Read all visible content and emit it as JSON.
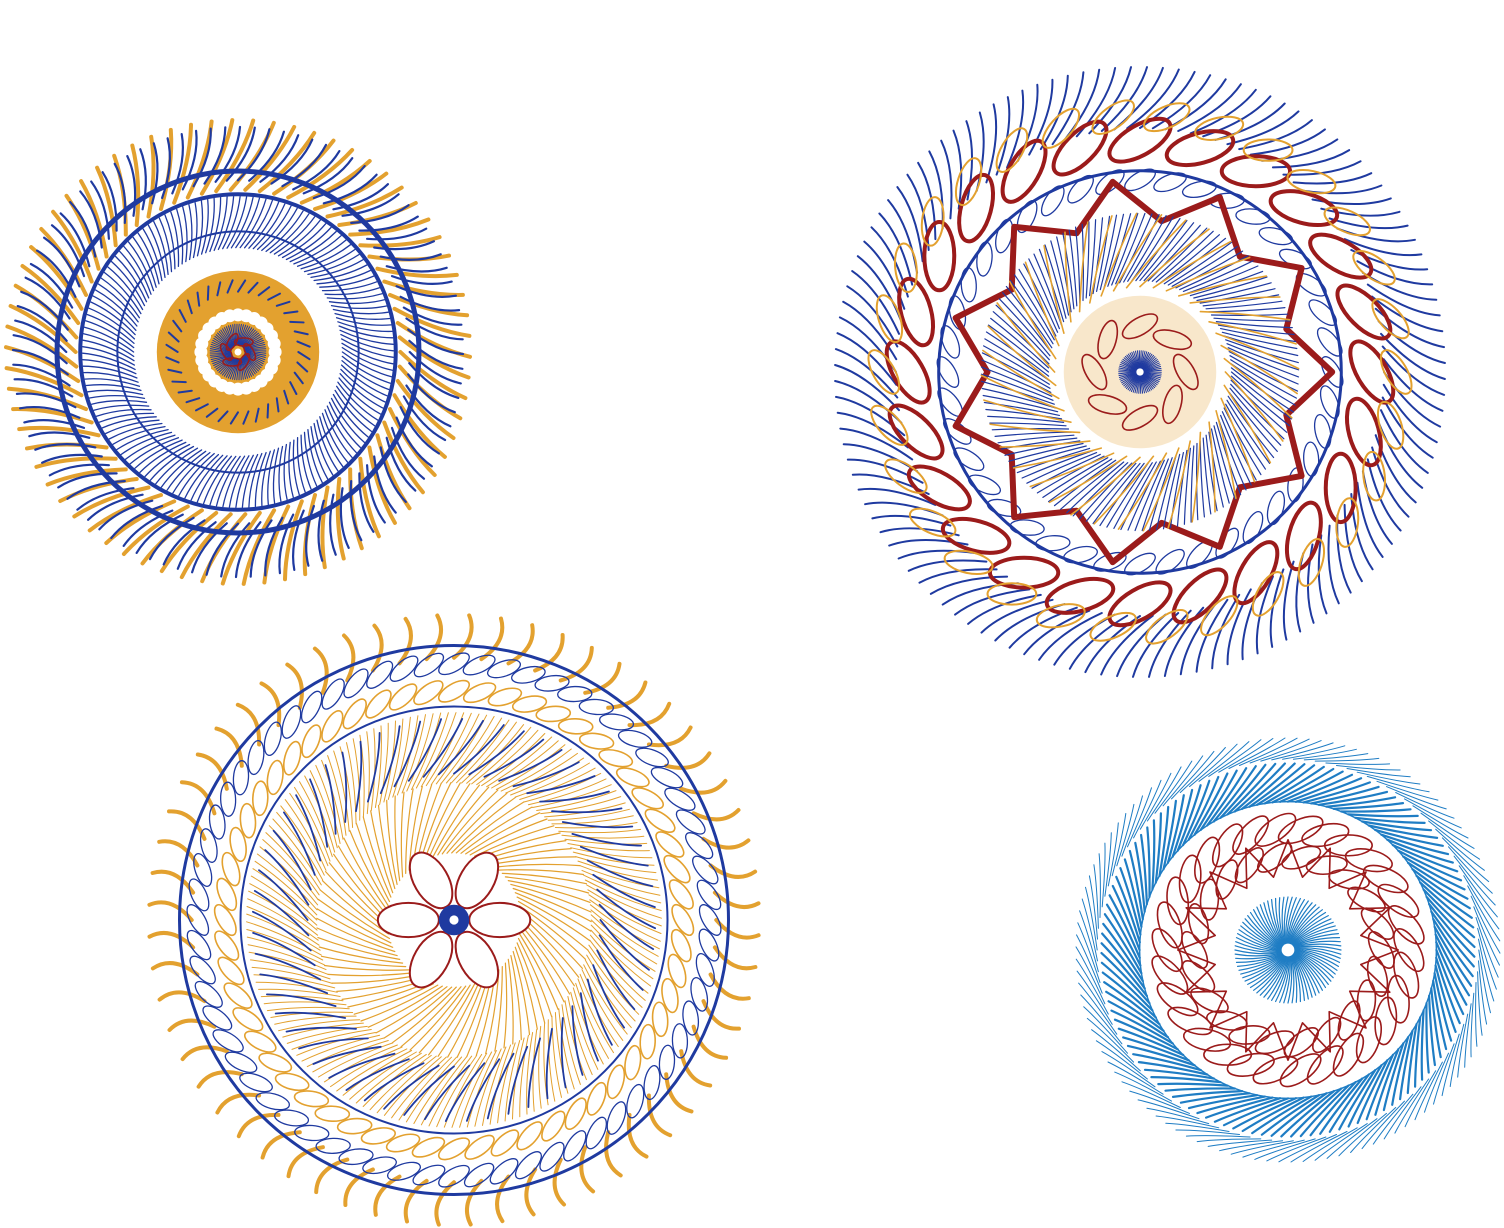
{
  "palette": {
    "background": "#ffffff",
    "navy": "#1f3aa0",
    "gold": "#e3a12f",
    "crimson": "#9b1b1b",
    "sky": "#1f7dc4"
  },
  "mandalas": [
    {
      "name": "mandala-top-left",
      "layers": [
        {
          "kind": "spikes",
          "count": 70,
          "rIn": 0.7,
          "rOut": 1.0,
          "color": "gold",
          "twist": 0.2,
          "width": 4
        },
        {
          "kind": "spikes",
          "count": 96,
          "rIn": 0.74,
          "rOut": 0.97,
          "color": "navy",
          "twist": 0.14,
          "width": 2.2
        },
        {
          "kind": "ring",
          "r": 0.78,
          "color": "navy",
          "width": 5
        },
        {
          "kind": "ring",
          "r": 0.68,
          "color": "navy",
          "width": 4
        },
        {
          "kind": "spikes",
          "count": 150,
          "rIn": 0.45,
          "rOut": 0.67,
          "color": "navy",
          "twist": 0.16,
          "width": 1.3
        },
        {
          "kind": "ring",
          "r": 0.52,
          "color": "navy",
          "width": 2
        },
        {
          "kind": "disc",
          "r": 0.35,
          "color": "gold"
        },
        {
          "kind": "dashes",
          "count": 36,
          "r": 0.26,
          "len": 0.05,
          "color": "navy",
          "width": 2
        },
        {
          "kind": "dots",
          "count": 28,
          "r": 0.16,
          "size": 0.028,
          "color": "white"
        },
        {
          "kind": "spikes",
          "count": 80,
          "rIn": 0.03,
          "rOut": 0.12,
          "color": "navy",
          "twist": 0.2,
          "width": 1
        },
        {
          "kind": "loops",
          "count": 6,
          "r": 0.05,
          "size": 0.025,
          "color": "crimson",
          "width": 1.5
        },
        {
          "kind": "disc",
          "r": 0.015,
          "color": "white"
        }
      ]
    },
    {
      "name": "mandala-top-right",
      "layers": [
        {
          "kind": "spikes",
          "count": 120,
          "rIn": 0.8,
          "rOut": 1.0,
          "color": "navy",
          "twist": 0.18,
          "width": 2
        },
        {
          "kind": "loops",
          "count": 24,
          "r": 0.76,
          "size": 0.07,
          "color": "crimson",
          "width": 4
        },
        {
          "kind": "loops",
          "count": 30,
          "r": 0.84,
          "size": 0.05,
          "color": "gold",
          "width": 2
        },
        {
          "kind": "loops",
          "count": 40,
          "r": 0.63,
          "size": 0.035,
          "color": "navy",
          "width": 1.3
        },
        {
          "kind": "ring",
          "r": 0.66,
          "color": "navy",
          "width": 3
        },
        {
          "kind": "star",
          "points": 11,
          "rIn": 0.5,
          "rOut": 0.63,
          "color": "crimson",
          "width": 6
        },
        {
          "kind": "spikes",
          "count": 140,
          "rIn": 0.3,
          "rOut": 0.52,
          "color": "navy",
          "twist": 0.3,
          "width": 1.2
        },
        {
          "kind": "spikes",
          "count": 40,
          "rIn": 0.28,
          "rOut": 0.52,
          "color": "gold",
          "twist": 0.45,
          "width": 1.6
        },
        {
          "kind": "disc",
          "r": 0.26,
          "color": "white"
        },
        {
          "kind": "disc",
          "r": 0.25,
          "color": "gold",
          "opacity": 0.25
        },
        {
          "kind": "loops",
          "count": 8,
          "r": 0.15,
          "size": 0.04,
          "color": "crimson",
          "width": 1.6
        },
        {
          "kind": "spikes",
          "count": 70,
          "rIn": 0.0,
          "rOut": 0.07,
          "color": "navy",
          "twist": 0.1,
          "width": 1
        },
        {
          "kind": "disc",
          "r": 0.012,
          "color": "white"
        }
      ]
    },
    {
      "name": "mandala-bottom-left",
      "layers": [
        {
          "kind": "spikes",
          "count": 60,
          "rIn": 0.86,
          "rOut": 1.0,
          "color": "gold",
          "twist": 0.05,
          "width": 4
        },
        {
          "kind": "ring",
          "r": 0.9,
          "color": "navy",
          "width": 3
        },
        {
          "kind": "loops",
          "count": 64,
          "r": 0.84,
          "size": 0.035,
          "color": "navy",
          "width": 1.3
        },
        {
          "kind": "loops",
          "count": 56,
          "r": 0.75,
          "size": 0.035,
          "color": "gold",
          "width": 1.6
        },
        {
          "kind": "ring",
          "r": 0.7,
          "color": "navy",
          "width": 2
        },
        {
          "kind": "spikes",
          "count": 170,
          "rIn": 0.45,
          "rOut": 0.68,
          "color": "gold",
          "twist": 0.25,
          "width": 1
        },
        {
          "kind": "spikes",
          "count": 60,
          "rIn": 0.48,
          "rOut": 0.66,
          "color": "navy",
          "twist": 0.25,
          "width": 1.8
        },
        {
          "kind": "spikes",
          "count": 90,
          "rIn": 0.22,
          "rOut": 0.45,
          "color": "gold",
          "twist": 0.5,
          "width": 1.2
        },
        {
          "kind": "petals",
          "count": 6,
          "rIn": 0.05,
          "rOut": 0.25,
          "color": "crimson",
          "width": 2
        },
        {
          "kind": "disc",
          "r": 0.05,
          "color": "navy"
        },
        {
          "kind": "disc",
          "r": 0.015,
          "color": "white"
        }
      ]
    },
    {
      "name": "mandala-bottom-right",
      "layers": [
        {
          "kind": "spikes",
          "count": 110,
          "rIn": 0.9,
          "rOut": 1.0,
          "color": "sky",
          "twist": 0.3,
          "width": 1
        },
        {
          "kind": "spikes",
          "count": 120,
          "rIn": 0.7,
          "rOut": 0.88,
          "color": "sky",
          "twist": 0.35,
          "width": 2.2
        },
        {
          "kind": "ring",
          "r": 0.7,
          "color": "sky",
          "width": 1.5
        },
        {
          "kind": "loops",
          "count": 30,
          "r": 0.57,
          "size": 0.07,
          "color": "crimson",
          "width": 1.6
        },
        {
          "kind": "loops",
          "count": 22,
          "r": 0.44,
          "size": 0.06,
          "color": "crimson",
          "width": 1.6
        },
        {
          "kind": "star",
          "points": 16,
          "rIn": 0.35,
          "rOut": 0.52,
          "color": "crimson",
          "width": 1.6
        },
        {
          "kind": "spikes",
          "count": 80,
          "rIn": 0.02,
          "rOut": 0.25,
          "color": "sky",
          "twist": 0.55,
          "width": 1.2
        },
        {
          "kind": "disc",
          "r": 0.03,
          "color": "white"
        }
      ]
    }
  ]
}
